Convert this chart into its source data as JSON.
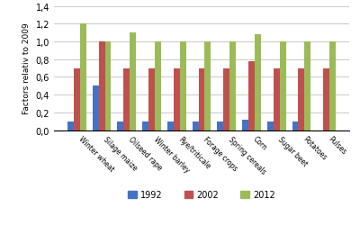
{
  "categories": [
    "Winter wheat",
    "Silage maize",
    "Oilseed rape",
    "Winter barley",
    "Rye/triticale",
    "Forage crops",
    "Spring cereals",
    "Corn",
    "Sugar beet",
    "Potatoes",
    "Pulses"
  ],
  "series": {
    "1992": [
      0.1,
      0.5,
      0.1,
      0.1,
      0.1,
      0.1,
      0.1,
      0.12,
      0.1,
      0.1,
      0.0
    ],
    "2002": [
      0.7,
      1.0,
      0.7,
      0.7,
      0.7,
      0.7,
      0.7,
      0.78,
      0.7,
      0.7,
      0.7
    ],
    "2012": [
      1.2,
      1.0,
      1.1,
      1.0,
      1.0,
      1.0,
      1.0,
      1.08,
      1.0,
      1.0,
      1.0
    ]
  },
  "colors": {
    "1992": "#4472C4",
    "2002": "#C0504D",
    "2012": "#9BBB59"
  },
  "ylabel": "Factors relativ to 2009",
  "ylim": [
    0,
    1.4
  ],
  "yticks": [
    0.0,
    0.2,
    0.4,
    0.6,
    0.8,
    1.0,
    1.2,
    1.4
  ],
  "ytick_labels": [
    "0,0",
    "0,2",
    "0,4",
    "0,6",
    "0,8",
    "1,0",
    "1,2",
    "1,4"
  ],
  "background_color": "#FFFFFF",
  "grid_color": "#BFBFBF",
  "legend_labels": [
    "1992",
    "2002",
    "2012"
  ]
}
